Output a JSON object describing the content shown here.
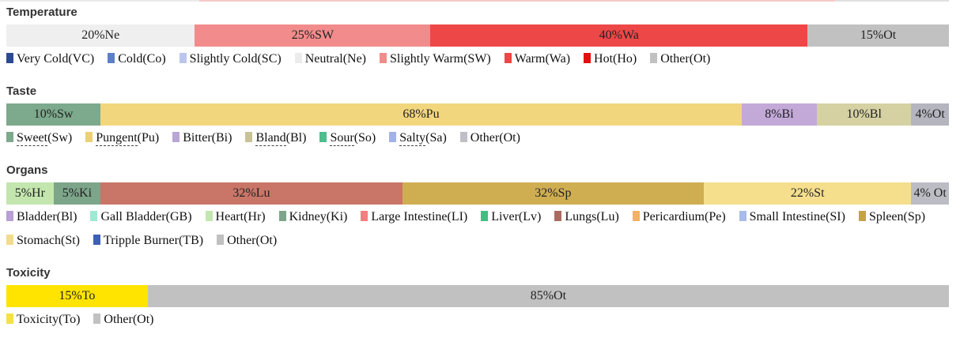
{
  "chart_data": [
    {
      "type": "bar",
      "stacked": true,
      "orientation": "horizontal",
      "unit": "%",
      "title": "Temperature",
      "legend_position": "bottom",
      "segments": [
        {
          "label": "20%Ne",
          "name": "Neutral",
          "abbr": "Ne",
          "value": 20,
          "color": "#efefef"
        },
        {
          "label": "25%SW",
          "name": "Slightly Warm",
          "abbr": "SW",
          "value": 25,
          "color": "#f28b8b"
        },
        {
          "label": "40%Wa",
          "name": "Warm",
          "abbr": "Wa",
          "value": 40,
          "color": "#ee4747"
        },
        {
          "label": "15%Ot",
          "name": "Other",
          "abbr": "Ot",
          "value": 15,
          "color": "#c1c1c1"
        }
      ],
      "legend": [
        {
          "name": "Very Cold",
          "paren": "(VC)",
          "color": "#2c4a93",
          "underline": false
        },
        {
          "name": "Cold",
          "paren": "(Co)",
          "color": "#5d7fc9",
          "underline": false
        },
        {
          "name": "Slightly Cold",
          "paren": "(SC)",
          "color": "#bcc6ec",
          "underline": false
        },
        {
          "name": "Neutral",
          "paren": "(Ne)",
          "color": "#ececec",
          "underline": false
        },
        {
          "name": "Slightly Warm",
          "paren": "(SW)",
          "color": "#f28b8b",
          "underline": false
        },
        {
          "name": "Warm",
          "paren": "(Wa)",
          "color": "#ee4747",
          "underline": false
        },
        {
          "name": "Hot",
          "paren": "(Ho)",
          "color": "#e30e0e",
          "underline": false
        },
        {
          "name": "Other",
          "paren": "(Ot)",
          "color": "#c1c1c1",
          "underline": false
        }
      ]
    },
    {
      "type": "bar",
      "stacked": true,
      "orientation": "horizontal",
      "unit": "%",
      "title": "Taste",
      "legend_position": "bottom",
      "segments": [
        {
          "label": "10%Sw",
          "name": "Sweet",
          "abbr": "Sw",
          "value": 10,
          "color": "#7da98c"
        },
        {
          "label": "68%Pu",
          "name": "Pungent",
          "abbr": "Pu",
          "value": 68,
          "color": "#f2d67e"
        },
        {
          "label": "8%Bi",
          "name": "Bitter",
          "abbr": "Bi",
          "value": 8,
          "color": "#c3a9d8"
        },
        {
          "label": "10%Bl",
          "name": "Bland",
          "abbr": "Bl",
          "value": 10,
          "color": "#d5d1a3"
        },
        {
          "label": "4%Ot",
          "name": "Other",
          "abbr": "Ot",
          "value": 4,
          "color": "#b5b5bf"
        }
      ],
      "legend": [
        {
          "name": "Sweet",
          "paren": "(Sw)",
          "color": "#7da98c",
          "underline": true
        },
        {
          "name": "Pungent",
          "paren": "(Pu)",
          "color": "#ecd075",
          "underline": true
        },
        {
          "name": "Bitter",
          "paren": "(Bi)",
          "color": "#b9a6d4",
          "underline": false
        },
        {
          "name": "Bland",
          "paren": "(Bl)",
          "color": "#c7c397",
          "underline": true
        },
        {
          "name": "Sour",
          "paren": "(So)",
          "color": "#4dbe8c",
          "underline": true
        },
        {
          "name": "Salty",
          "paren": "(Sa)",
          "color": "#a3b2e8",
          "underline": true
        },
        {
          "name": "Other",
          "paren": "(Ot)",
          "color": "#bfbfc5",
          "underline": false
        }
      ]
    },
    {
      "type": "bar",
      "stacked": true,
      "orientation": "horizontal",
      "unit": "%",
      "title": "Organs",
      "legend_position": "bottom",
      "segments": [
        {
          "label": "5%Hr",
          "name": "Heart",
          "abbr": "Hr",
          "value": 5,
          "color": "#c3e6ae"
        },
        {
          "label": "5%Ki",
          "name": "Kidney",
          "abbr": "Ki",
          "value": 5,
          "color": "#7ca58a"
        },
        {
          "label": "32%Lu",
          "name": "Lungs",
          "abbr": "Lu",
          "value": 32,
          "color": "#c97568"
        },
        {
          "label": "32%Sp",
          "name": "Spleen",
          "abbr": "Sp",
          "value": 32,
          "color": "#cfae52"
        },
        {
          "label": "22%St",
          "name": "Stomach",
          "abbr": "St",
          "value": 22,
          "color": "#f5df8d"
        },
        {
          "label": "4% Ot",
          "name": "Other",
          "abbr": "Ot",
          "value": 4,
          "color": "#bcbcc4"
        }
      ],
      "legend": [
        {
          "name": "Bladder",
          "paren": "(Bl)",
          "color": "#b89fd6",
          "underline": false
        },
        {
          "name": "Gall Bladder",
          "paren": "(GB)",
          "color": "#9ee9d2",
          "underline": false
        },
        {
          "name": "Heart",
          "paren": "(Hr)",
          "color": "#c3e6ae",
          "underline": false
        },
        {
          "name": "Kidney",
          "paren": "(Ki)",
          "color": "#7ca58a",
          "underline": false
        },
        {
          "name": "Large Intestine",
          "paren": "(LI)",
          "color": "#f08080",
          "underline": false
        },
        {
          "name": "Liver",
          "paren": "(Lv)",
          "color": "#44bd82",
          "underline": false
        },
        {
          "name": "Lungs",
          "paren": "(Lu)",
          "color": "#aa6c60",
          "underline": false
        },
        {
          "name": "Pericardium",
          "paren": "(Pe)",
          "color": "#f2b169",
          "underline": false
        },
        {
          "name": "Small Intestine",
          "paren": "(SI)",
          "color": "#a9bbe8",
          "underline": false
        },
        {
          "name": "Spleen",
          "paren": "(Sp)",
          "color": "#c3a43f",
          "underline": false
        },
        {
          "name": "Stomach",
          "paren": "(St)",
          "color": "#f2dc8c",
          "underline": false
        },
        {
          "name": "Tripple Burner",
          "paren": "(TB)",
          "color": "#3c60b4",
          "underline": false
        },
        {
          "name": "Other",
          "paren": "(Ot)",
          "color": "#c0c0c0",
          "underline": false
        }
      ]
    },
    {
      "type": "bar",
      "stacked": true,
      "orientation": "horizontal",
      "unit": "%",
      "title": "Toxicity",
      "legend_position": "bottom",
      "segments": [
        {
          "label": "15%To",
          "name": "Toxicity",
          "abbr": "To",
          "value": 15,
          "color": "#ffe400"
        },
        {
          "label": "85%Ot",
          "name": "Other",
          "abbr": "Ot",
          "value": 85,
          "color": "#c1c1c1"
        }
      ],
      "legend": [
        {
          "name": "Toxicity",
          "paren": "(To)",
          "color": "#f6e045",
          "underline": false
        },
        {
          "name": "Other",
          "paren": "(Ot)",
          "color": "#c1c1c1",
          "underline": false
        }
      ]
    }
  ]
}
